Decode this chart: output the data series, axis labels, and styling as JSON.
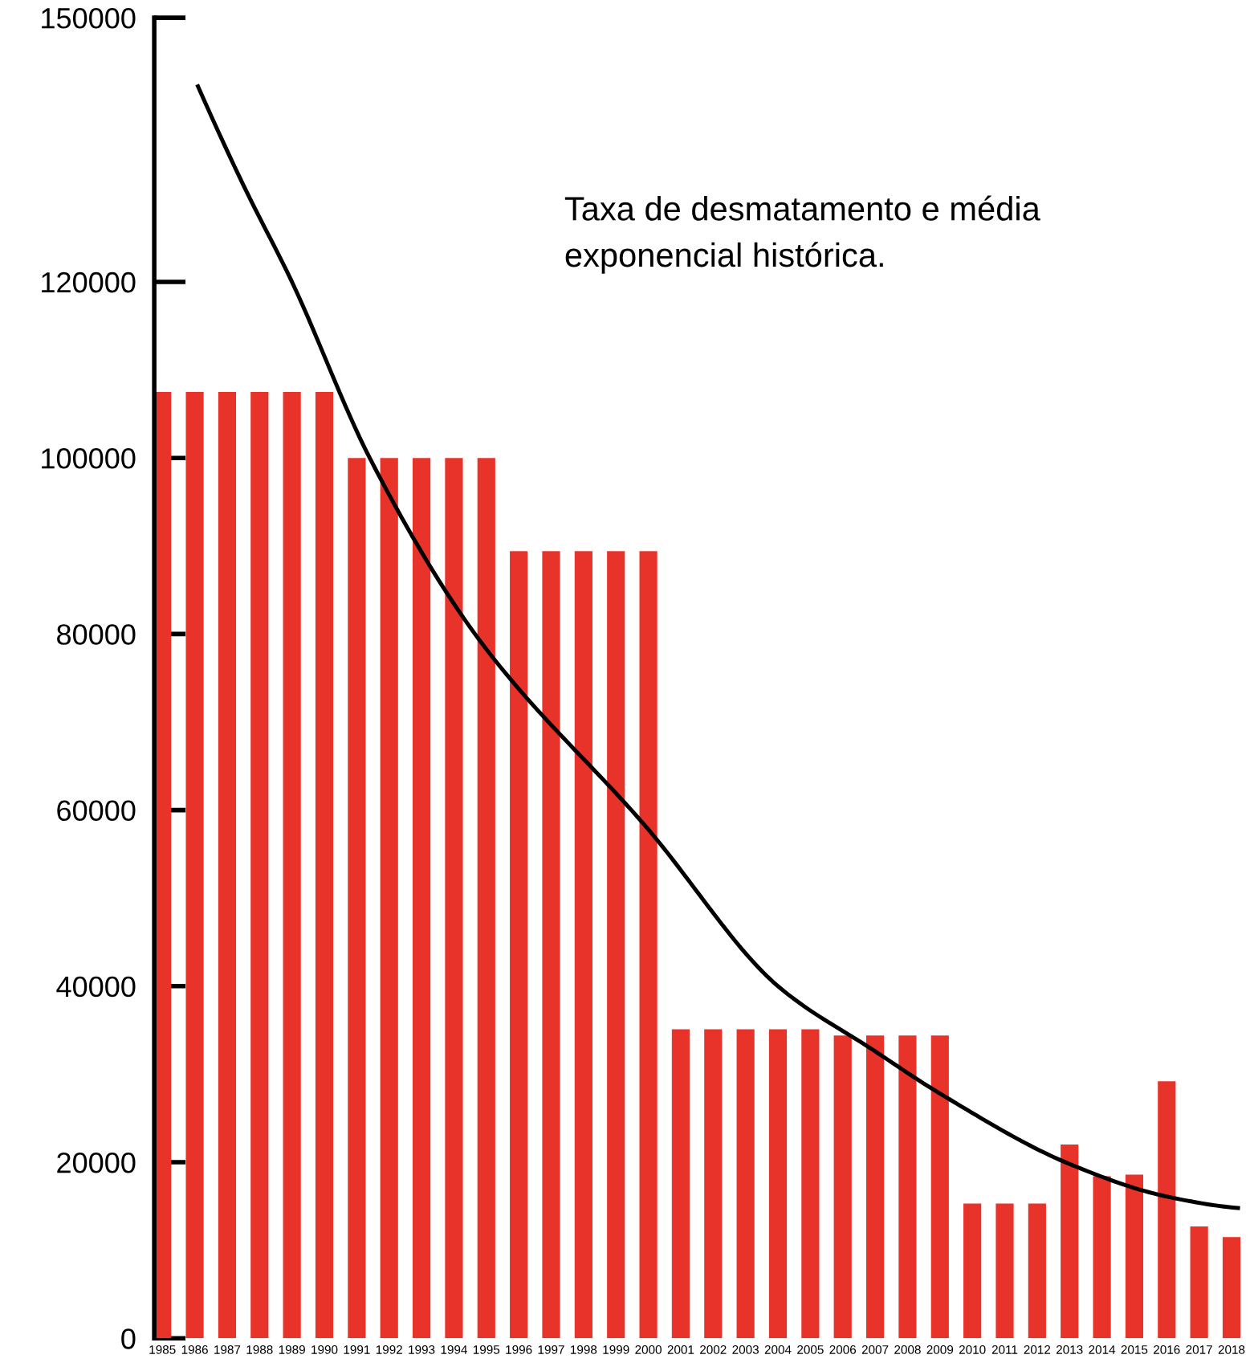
{
  "chart_data": {
    "type": "bar",
    "x": [
      1985,
      1986,
      1987,
      1988,
      1989,
      1990,
      1991,
      1992,
      1993,
      1994,
      1995,
      1996,
      1997,
      1998,
      1999,
      2000,
      2001,
      2002,
      2003,
      2004,
      2005,
      2006,
      2007,
      2008,
      2009,
      2010,
      2011,
      2012,
      2013,
      2014,
      2015,
      2016,
      2017,
      2018
    ],
    "xlim": [
      1984.75,
      2018.5
    ],
    "xticks": [
      1985,
      1986,
      1987,
      1988,
      1989,
      1990,
      1991,
      1992,
      1993,
      1994,
      1995,
      1996,
      1997,
      1998,
      1999,
      2000,
      2001,
      2002,
      2003,
      2004,
      2005,
      2006,
      2007,
      2008,
      2009,
      2010,
      2011,
      2012,
      2013,
      2014,
      2015,
      2016,
      2017,
      2018
    ],
    "ylim": [
      0,
      150000
    ],
    "yticks": [
      0,
      20000,
      40000,
      60000,
      80000,
      100000,
      120000,
      150000
    ],
    "series": [
      {
        "color": "#e8332b",
        "values": [
          107500,
          107500,
          107500,
          107500,
          107500,
          107500,
          100000,
          100000,
          100000,
          100000,
          100000,
          89400,
          89400,
          89400,
          89400,
          89400,
          35100,
          35100,
          35100,
          35100,
          35100,
          34400,
          34400,
          34400,
          34400,
          15300,
          15300,
          15300,
          22000,
          18400,
          18600,
          29200,
          12700,
          11500
        ]
      },
      {
        "type": "line",
        "color": "#000000",
        "x": [
          1986.1,
          1987.5,
          1989,
          1991.4,
          1994.65,
          2000,
          2004,
          2007,
          2009,
          2013,
          2016,
          2018.2
        ],
        "values": [
          142200,
          131000,
          120000,
          100000,
          80000,
          57800,
          40000,
          32600,
          27800,
          19800,
          16100,
          14800
        ]
      }
    ],
    "annotations": [
      "Taxa de desmatamento e média\nexponencial histórica."
    ],
    "grid": false,
    "legend": false
  }
}
